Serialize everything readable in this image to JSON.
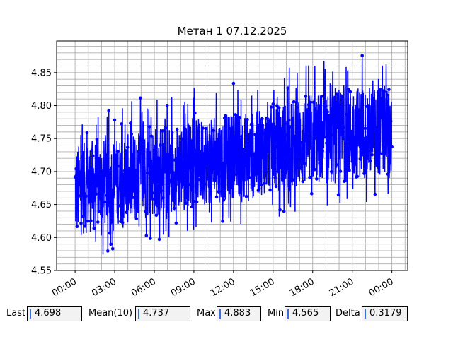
{
  "chart_data": {
    "type": "line",
    "title": "Метан 1 07.12.2025",
    "xlabel": "",
    "ylabel": "",
    "x_tick_labels": [
      "00:00",
      "03:00",
      "06:00",
      "09:00",
      "12:00",
      "15:00",
      "18:00",
      "21:00",
      "00:00"
    ],
    "x_ticks_hours": [
      0,
      3,
      6,
      9,
      12,
      15,
      18,
      21,
      24
    ],
    "xlim_hours": [
      -1.4,
      25.2
    ],
    "y_tick_labels": [
      "4.55",
      "4.60",
      "4.65",
      "4.70",
      "4.75",
      "4.80",
      "4.85"
    ],
    "y_ticks": [
      4.55,
      4.6,
      4.65,
      4.7,
      4.75,
      4.8,
      4.85
    ],
    "ylim": [
      4.55,
      4.898
    ],
    "grid": true,
    "series": [
      {
        "color": "#0000ff",
        "marker": "circle",
        "envelope": [
          {
            "x": 0,
            "low": 4.6,
            "high": 4.74
          },
          {
            "x": 1.5,
            "low": 4.61,
            "high": 4.75
          },
          {
            "x": 3,
            "low": 4.62,
            "high": 4.75
          },
          {
            "x": 4.5,
            "low": 4.62,
            "high": 4.76
          },
          {
            "x": 6,
            "low": 4.63,
            "high": 4.77
          },
          {
            "x": 7.5,
            "low": 4.64,
            "high": 4.77
          },
          {
            "x": 9,
            "low": 4.65,
            "high": 4.78
          },
          {
            "x": 10.5,
            "low": 4.65,
            "high": 4.78
          },
          {
            "x": 12,
            "low": 4.66,
            "high": 4.79
          },
          {
            "x": 13.5,
            "low": 4.66,
            "high": 4.79
          },
          {
            "x": 15,
            "low": 4.67,
            "high": 4.8
          },
          {
            "x": 16.5,
            "low": 4.67,
            "high": 4.81
          },
          {
            "x": 18,
            "low": 4.68,
            "high": 4.82
          },
          {
            "x": 19.5,
            "low": 4.68,
            "high": 4.82
          },
          {
            "x": 21,
            "low": 4.69,
            "high": 4.83
          },
          {
            "x": 22.5,
            "low": 4.69,
            "high": 4.83
          },
          {
            "x": 24,
            "low": 4.69,
            "high": 4.83
          }
        ]
      }
    ]
  },
  "stats": [
    {
      "label": "Last",
      "value": "4.698"
    },
    {
      "label": "Mean(10)",
      "value": "4.737"
    },
    {
      "label": "Max",
      "value": "4.883"
    },
    {
      "label": "Min",
      "value": "4.565"
    },
    {
      "label": "Delta",
      "value": "0.3179"
    }
  ]
}
